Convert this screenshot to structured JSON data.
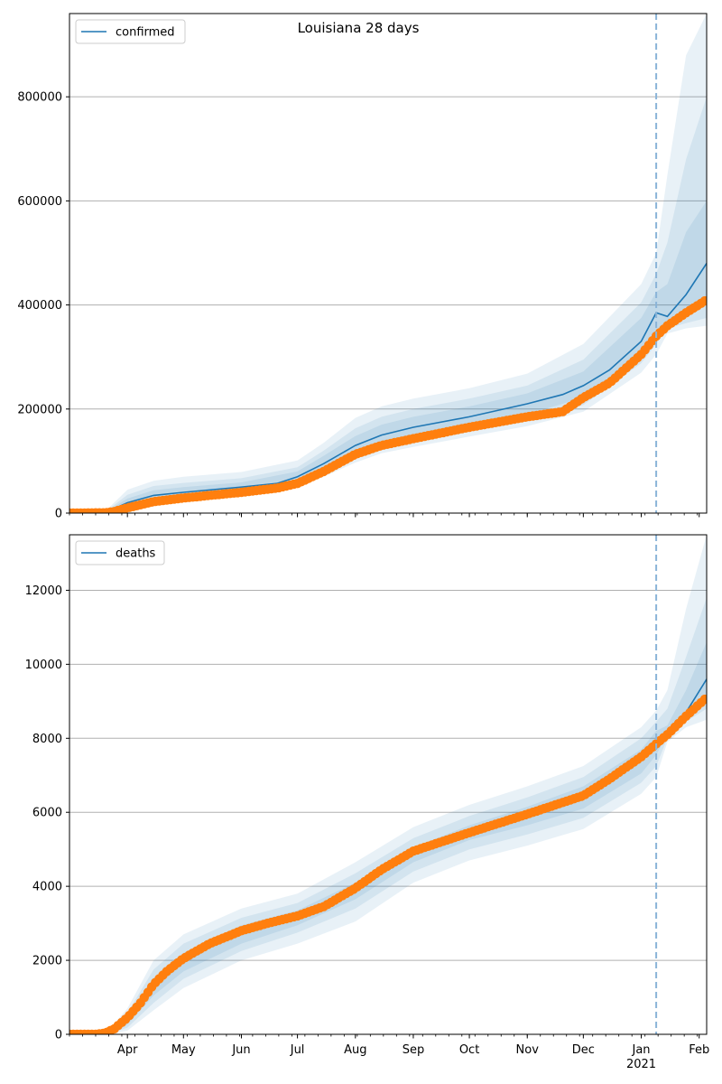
{
  "title": "Louisiana 28 days",
  "x_axis": {
    "months": [
      {
        "label": "Apr",
        "date": "2020-04-01"
      },
      {
        "label": "May",
        "date": "2020-05-01"
      },
      {
        "label": "Jun",
        "date": "2020-06-01"
      },
      {
        "label": "Jul",
        "date": "2020-07-01"
      },
      {
        "label": "Aug",
        "date": "2020-08-01"
      },
      {
        "label": "Sep",
        "date": "2020-09-01"
      },
      {
        "label": "Oct",
        "date": "2020-10-01"
      },
      {
        "label": "Nov",
        "date": "2020-11-01"
      },
      {
        "label": "Dec",
        "date": "2020-12-01"
      },
      {
        "label": "Jan",
        "date": "2021-01-01"
      },
      {
        "label": "Feb",
        "date": "2021-02-01"
      }
    ],
    "year_label": "2021",
    "range": [
      "2020-03-01",
      "2021-02-05"
    ],
    "forecast_start": "2021-01-09"
  },
  "colors": {
    "model": "#1f77b4",
    "observed": "#ff7f0e",
    "band": "#1f77b4",
    "grid": "#b0b0b0",
    "forecast_line": "#8ab4d8"
  },
  "chart_data": [
    {
      "type": "line",
      "legend": "confirmed",
      "legend_position": "top-left",
      "grid": "y",
      "ylim": [
        0,
        960000
      ],
      "yticks": [
        0,
        200000,
        400000,
        600000,
        800000
      ],
      "yticklabels": [
        "0",
        "200000",
        "400000",
        "600000",
        "800000"
      ],
      "model_line": {
        "x": [
          "2020-03-01",
          "2020-03-20",
          "2020-04-01",
          "2020-04-15",
          "2020-05-01",
          "2020-06-01",
          "2020-06-20",
          "2020-07-01",
          "2020-07-15",
          "2020-08-01",
          "2020-08-15",
          "2020-09-01",
          "2020-10-01",
          "2020-11-01",
          "2020-11-20",
          "2020-12-01",
          "2020-12-15",
          "2021-01-01",
          "2021-01-09",
          "2021-01-15",
          "2021-01-25",
          "2021-02-05"
        ],
        "y": [
          0,
          500,
          20000,
          34000,
          40000,
          50000,
          57000,
          70000,
          95000,
          130000,
          150000,
          165000,
          185000,
          210000,
          228000,
          245000,
          275000,
          330000,
          385000,
          378000,
          420000,
          480000
        ]
      },
      "bands": [
        {
          "x": [
            "2020-03-01",
            "2020-03-20",
            "2020-04-01",
            "2020-04-15",
            "2020-05-01",
            "2020-06-01",
            "2020-07-01",
            "2020-07-15",
            "2020-08-01",
            "2020-08-15",
            "2020-09-01",
            "2020-10-01",
            "2020-11-01",
            "2020-12-01",
            "2021-01-01",
            "2021-01-09",
            "2021-01-15",
            "2021-01-25",
            "2021-02-05"
          ],
          "lower": [
            0,
            0,
            10000,
            20000,
            26000,
            34000,
            50000,
            70000,
            97000,
            115000,
            127000,
            147000,
            167000,
            195000,
            270000,
            305000,
            345000,
            355000,
            360000
          ],
          "upper": [
            0,
            3000,
            45000,
            62000,
            70000,
            79000,
            101000,
            135000,
            183000,
            205000,
            220000,
            240000,
            268000,
            325000,
            440000,
            500000,
            650000,
            880000,
            960000
          ]
        },
        {
          "x": [
            "2020-03-01",
            "2020-03-20",
            "2020-04-01",
            "2020-04-15",
            "2020-05-01",
            "2020-06-01",
            "2020-07-01",
            "2020-07-15",
            "2020-08-01",
            "2020-08-15",
            "2020-09-01",
            "2020-10-01",
            "2020-11-01",
            "2020-12-01",
            "2021-01-01",
            "2021-01-09",
            "2021-01-15",
            "2021-01-25",
            "2021-02-05"
          ],
          "lower": [
            0,
            0,
            13000,
            24000,
            30000,
            39000,
            56000,
            77000,
            106000,
            125000,
            138000,
            157000,
            178000,
            208000,
            288000,
            325000,
            355000,
            365000,
            375000
          ],
          "upper": [
            0,
            2000,
            35000,
            52000,
            58000,
            67000,
            88000,
            120000,
            163000,
            185000,
            200000,
            220000,
            245000,
            295000,
            405000,
            460000,
            520000,
            680000,
            800000
          ]
        },
        {
          "x": [
            "2020-03-01",
            "2020-03-20",
            "2020-04-01",
            "2020-04-15",
            "2020-05-01",
            "2020-06-01",
            "2020-07-01",
            "2020-07-15",
            "2020-08-01",
            "2020-08-15",
            "2020-09-01",
            "2020-10-01",
            "2020-11-01",
            "2020-12-01",
            "2021-01-01",
            "2021-01-09",
            "2021-01-15",
            "2021-01-25",
            "2021-02-05"
          ],
          "lower": [
            0,
            0,
            16000,
            28000,
            34000,
            44000,
            62000,
            84000,
            114000,
            133000,
            148000,
            167000,
            190000,
            222000,
            305000,
            345000,
            362000,
            380000,
            400000
          ],
          "upper": [
            0,
            1500,
            28000,
            44000,
            50000,
            59000,
            80000,
            110000,
            148000,
            170000,
            185000,
            205000,
            230000,
            272000,
            375000,
            425000,
            440000,
            540000,
            600000
          ]
        }
      ],
      "observed": {
        "x": [
          "2020-03-01",
          "2020-03-20",
          "2020-03-25",
          "2020-04-01",
          "2020-04-15",
          "2020-05-01",
          "2020-06-01",
          "2020-06-20",
          "2020-07-01",
          "2020-07-15",
          "2020-08-01",
          "2020-08-15",
          "2020-09-01",
          "2020-10-01",
          "2020-11-01",
          "2020-11-20",
          "2020-12-01",
          "2020-12-15",
          "2021-01-01",
          "2021-01-09",
          "2021-01-15",
          "2021-01-25",
          "2021-02-05"
        ],
        "y": [
          0,
          600,
          3000,
          10000,
          22000,
          29000,
          40000,
          48000,
          57000,
          80000,
          113000,
          130000,
          143000,
          165000,
          185000,
          195000,
          222000,
          250000,
          305000,
          340000,
          360000,
          385000,
          410000
        ]
      }
    },
    {
      "type": "line",
      "legend": "deaths",
      "legend_position": "top-left",
      "grid": "y",
      "ylim": [
        0,
        13500
      ],
      "yticks": [
        0,
        2000,
        4000,
        6000,
        8000,
        10000,
        12000
      ],
      "yticklabels": [
        "0",
        "2000",
        "4000",
        "6000",
        "8000",
        "10000",
        "12000"
      ],
      "model_line": {
        "x": [
          "2020-03-01",
          "2020-03-15",
          "2020-03-22",
          "2020-04-01",
          "2020-04-10",
          "2020-04-20",
          "2020-05-01",
          "2020-05-15",
          "2020-06-01",
          "2020-06-20",
          "2020-07-01",
          "2020-07-15",
          "2020-08-01",
          "2020-08-15",
          "2020-09-01",
          "2020-10-01",
          "2020-11-01",
          "2020-12-01",
          "2021-01-01",
          "2021-01-09",
          "2021-01-15",
          "2021-01-25",
          "2021-02-05"
        ],
        "y": [
          0,
          0,
          50,
          350,
          1000,
          1550,
          2000,
          2450,
          2800,
          3050,
          3200,
          3450,
          3950,
          4450,
          4950,
          5500,
          5950,
          6400,
          7400,
          7950,
          8150,
          8700,
          9600
        ]
      },
      "bands": [
        {
          "x": [
            "2020-03-01",
            "2020-03-15",
            "2020-03-22",
            "2020-04-01",
            "2020-04-15",
            "2020-05-01",
            "2020-06-01",
            "2020-07-01",
            "2020-08-01",
            "2020-09-01",
            "2020-10-01",
            "2020-11-01",
            "2020-12-01",
            "2021-01-01",
            "2021-01-09",
            "2021-01-15",
            "2021-01-25",
            "2021-02-05"
          ],
          "lower": [
            0,
            0,
            0,
            100,
            650,
            1250,
            2000,
            2450,
            3050,
            4100,
            4700,
            5100,
            5550,
            6500,
            6950,
            7900,
            8300,
            8500
          ],
          "upper": [
            0,
            0,
            120,
            700,
            2000,
            2700,
            3400,
            3800,
            4650,
            5600,
            6200,
            6700,
            7250,
            8300,
            8750,
            9300,
            11500,
            13500
          ]
        },
        {
          "x": [
            "2020-03-01",
            "2020-03-15",
            "2020-03-22",
            "2020-04-01",
            "2020-04-15",
            "2020-05-01",
            "2020-06-01",
            "2020-07-01",
            "2020-08-01",
            "2020-09-01",
            "2020-10-01",
            "2020-11-01",
            "2020-12-01",
            "2021-01-01",
            "2021-01-09",
            "2021-01-15",
            "2021-01-25",
            "2021-02-05"
          ],
          "lower": [
            0,
            0,
            10,
            180,
            850,
            1500,
            2250,
            2750,
            3400,
            4400,
            5000,
            5400,
            5850,
            6800,
            7250,
            8000,
            8450,
            8800
          ],
          "upper": [
            0,
            0,
            100,
            580,
            1750,
            2450,
            3150,
            3550,
            4350,
            5300,
            5900,
            6400,
            6950,
            8000,
            8450,
            8800,
            10200,
            11800
          ]
        },
        {
          "x": [
            "2020-03-01",
            "2020-03-15",
            "2020-03-22",
            "2020-04-01",
            "2020-04-15",
            "2020-05-01",
            "2020-06-01",
            "2020-07-01",
            "2020-08-01",
            "2020-09-01",
            "2020-10-01",
            "2020-11-01",
            "2020-12-01",
            "2021-01-01",
            "2021-01-09",
            "2021-01-15",
            "2021-01-25",
            "2021-02-05"
          ],
          "lower": [
            0,
            0,
            20,
            260,
            1050,
            1700,
            2450,
            2950,
            3650,
            4650,
            5250,
            5650,
            6100,
            7050,
            7550,
            8100,
            8550,
            9100
          ],
          "upper": [
            0,
            0,
            80,
            470,
            1500,
            2200,
            2950,
            3350,
            4100,
            5050,
            5650,
            6150,
            6700,
            7700,
            8200,
            8350,
            9300,
            10600
          ]
        }
      ],
      "observed": {
        "x": [
          "2020-03-01",
          "2020-03-15",
          "2020-03-20",
          "2020-03-25",
          "2020-04-01",
          "2020-04-08",
          "2020-04-15",
          "2020-04-22",
          "2020-05-01",
          "2020-05-15",
          "2020-06-01",
          "2020-06-15",
          "2020-07-01",
          "2020-07-15",
          "2020-08-01",
          "2020-08-15",
          "2020-09-01",
          "2020-10-01",
          "2020-11-01",
          "2020-12-01",
          "2020-12-15",
          "2021-01-01",
          "2021-01-09",
          "2021-01-15",
          "2021-01-25",
          "2021-02-05"
        ],
        "y": [
          0,
          0,
          30,
          150,
          450,
          850,
          1350,
          1700,
          2050,
          2450,
          2800,
          3000,
          3200,
          3450,
          3950,
          4450,
          4950,
          5450,
          5950,
          6450,
          6900,
          7500,
          7850,
          8100,
          8600,
          9100
        ]
      }
    }
  ]
}
